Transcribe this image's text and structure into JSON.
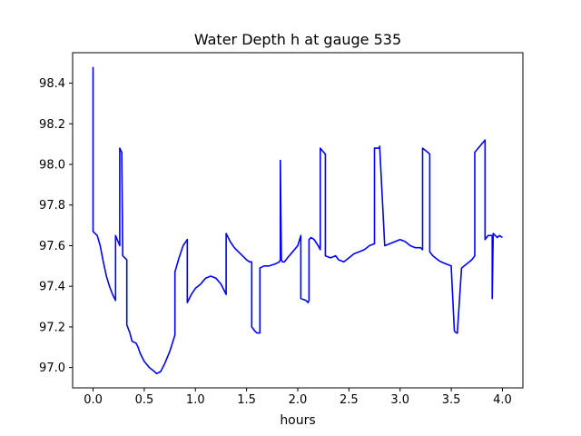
{
  "chart_data": {
    "type": "line",
    "title": "Water Depth h at gauge 535",
    "xlabel": "hours",
    "ylabel": "",
    "xlim": [
      -0.2,
      4.2
    ],
    "ylim": [
      96.9,
      98.55
    ],
    "xticks": [
      0.0,
      0.5,
      1.0,
      1.5,
      2.0,
      2.5,
      3.0,
      3.5,
      4.0
    ],
    "xtick_labels": [
      "0.0",
      "0.5",
      "1.0",
      "1.5",
      "2.0",
      "2.5",
      "3.0",
      "3.5",
      "4.0"
    ],
    "yticks": [
      97.0,
      97.2,
      97.4,
      97.6,
      97.8,
      98.0,
      98.2,
      98.4
    ],
    "ytick_labels": [
      "97.0",
      "97.2",
      "97.4",
      "97.6",
      "97.8",
      "98.0",
      "98.2",
      "98.4"
    ],
    "grid": false,
    "legend": "none",
    "series": [
      {
        "color": "#0000ff",
        "x": [
          0.0,
          0.0,
          0.0,
          0.0,
          0.04,
          0.07,
          0.1,
          0.13,
          0.16,
          0.19,
          0.22,
          0.22,
          0.26,
          0.26,
          0.28,
          0.29,
          0.33,
          0.33,
          0.36,
          0.38,
          0.42,
          0.44,
          0.46,
          0.5,
          0.55,
          0.6,
          0.62,
          0.66,
          0.7,
          0.75,
          0.8,
          0.8,
          0.84,
          0.88,
          0.92,
          0.92,
          0.96,
          1.0,
          1.05,
          1.1,
          1.15,
          1.2,
          1.25,
          1.3,
          1.3,
          1.34,
          1.38,
          1.42,
          1.46,
          1.5,
          1.53,
          1.55,
          1.55,
          1.58,
          1.6,
          1.63,
          1.63,
          1.67,
          1.72,
          1.78,
          1.82,
          1.83,
          1.83,
          1.84,
          1.85,
          1.87,
          1.9,
          1.95,
          2.0,
          2.03,
          2.03,
          2.08,
          2.1,
          2.11,
          2.11,
          2.13,
          2.16,
          2.2,
          2.22,
          2.22,
          2.27,
          2.27,
          2.32,
          2.37,
          2.4,
          2.45,
          2.5,
          2.55,
          2.6,
          2.65,
          2.7,
          2.75,
          2.75,
          2.8,
          2.8,
          2.85,
          2.9,
          2.95,
          3.0,
          3.05,
          3.1,
          3.15,
          3.2,
          3.22,
          3.22,
          3.27,
          3.29,
          3.29,
          3.32,
          3.37,
          3.4,
          3.45,
          3.5,
          3.5,
          3.53,
          3.55,
          3.56,
          3.56,
          3.6,
          3.65,
          3.7,
          3.73,
          3.73,
          3.78,
          3.83,
          3.83,
          3.86,
          3.9,
          3.9,
          3.91,
          3.93,
          3.95,
          3.97,
          4.0
        ],
        "y": [
          98.48,
          97.99,
          97.68,
          97.67,
          97.65,
          97.6,
          97.52,
          97.45,
          97.4,
          97.36,
          97.33,
          97.65,
          97.6,
          98.08,
          98.06,
          97.55,
          97.53,
          97.21,
          97.17,
          97.13,
          97.12,
          97.1,
          97.07,
          97.03,
          97.0,
          96.98,
          96.97,
          96.98,
          97.02,
          97.08,
          97.16,
          97.47,
          97.54,
          97.6,
          97.63,
          97.32,
          97.36,
          97.39,
          97.41,
          97.44,
          97.45,
          97.44,
          97.41,
          97.36,
          97.66,
          97.62,
          97.59,
          97.57,
          97.55,
          97.53,
          97.52,
          97.52,
          97.2,
          97.18,
          97.17,
          97.17,
          97.49,
          97.5,
          97.5,
          97.51,
          97.52,
          97.53,
          98.02,
          97.53,
          97.52,
          97.52,
          97.54,
          97.57,
          97.6,
          97.65,
          97.34,
          97.33,
          97.32,
          97.33,
          97.63,
          97.64,
          97.63,
          97.6,
          97.58,
          98.08,
          98.05,
          97.55,
          97.54,
          97.55,
          97.53,
          97.52,
          97.54,
          97.56,
          97.57,
          97.58,
          97.6,
          97.61,
          98.08,
          98.08,
          98.09,
          97.6,
          97.61,
          97.62,
          97.63,
          97.62,
          97.6,
          97.59,
          97.59,
          97.58,
          98.08,
          98.06,
          98.05,
          97.57,
          97.55,
          97.53,
          97.52,
          97.51,
          97.5,
          97.49,
          97.18,
          97.17,
          97.17,
          97.18,
          97.49,
          97.51,
          97.53,
          97.55,
          98.06,
          98.09,
          98.12,
          97.63,
          97.65,
          97.65,
          97.34,
          97.66,
          97.65,
          97.64,
          97.65,
          97.64
        ]
      }
    ]
  }
}
